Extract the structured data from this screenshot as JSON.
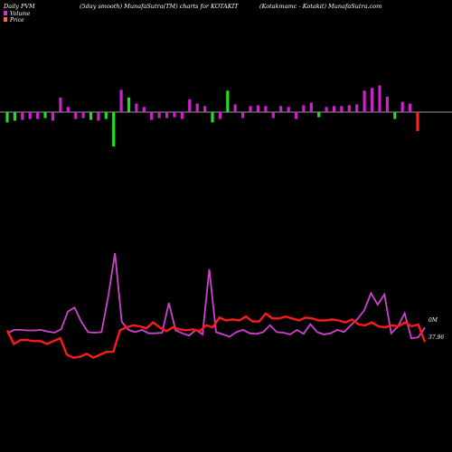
{
  "header": {
    "left": "Daily PVM",
    "middle": "(5day smooth) MunafaSutra(TM) charts for KOTAKIT",
    "right": "(Kotakmamc - Kotakit) MunafaSutra.com"
  },
  "legend": [
    {
      "label": "Volume",
      "color": "#cc33cc"
    },
    {
      "label": "Price",
      "color": "#ff6a3d"
    }
  ],
  "colors": {
    "background": "#000000",
    "bar_up": "#cc22cc",
    "bar_down": "#22dd22",
    "bar_red": "#ff2222",
    "price_line": "#ff1a1a",
    "volume_line": "#cc44cc",
    "baseline": "#cccccc"
  },
  "chart_data": {
    "type": "bar+line",
    "title": "(5day smooth) MunafaSutra(TM) charts for KOTAKIT",
    "pvm_bars": {
      "values": [
        -0.6,
        -0.5,
        -0.45,
        -0.4,
        -0.4,
        -0.35,
        -0.5,
        0.85,
        0.3,
        -0.4,
        -0.35,
        -0.45,
        -0.5,
        -0.4,
        -2.0,
        1.3,
        0.85,
        0.5,
        0.3,
        -0.45,
        -0.35,
        -0.35,
        -0.3,
        -0.4,
        0.75,
        0.5,
        0.35,
        -0.6,
        -0.4,
        1.25,
        0.45,
        -0.35,
        0.35,
        0.4,
        0.35,
        -0.35,
        0.35,
        0.3,
        -0.4,
        0.4,
        0.55,
        -0.3,
        0.3,
        0.35,
        0.35,
        0.4,
        0.45,
        1.25,
        1.4,
        1.55,
        0.9,
        -0.4,
        0.6,
        0.5,
        -1.1
      ],
      "colors": [
        "green",
        "green",
        "magenta",
        "magenta",
        "magenta",
        "green",
        "magenta",
        "magenta",
        "magenta",
        "magenta",
        "magenta",
        "green",
        "magenta",
        "green",
        "green",
        "magenta",
        "green",
        "magenta",
        "magenta",
        "magenta",
        "magenta",
        "magenta",
        "magenta",
        "magenta",
        "magenta",
        "magenta",
        "magenta",
        "green",
        "magenta",
        "green",
        "magenta",
        "magenta",
        "magenta",
        "magenta",
        "magenta",
        "magenta",
        "magenta",
        "magenta",
        "magenta",
        "magenta",
        "magenta",
        "green",
        "magenta",
        "magenta",
        "magenta",
        "magenta",
        "magenta",
        "magenta",
        "magenta",
        "magenta",
        "magenta",
        "green",
        "magenta",
        "magenta",
        "red"
      ]
    },
    "series": [
      {
        "name": "Volume",
        "values": [
          10,
          16,
          16,
          15,
          15,
          16,
          13,
          11,
          17,
          48,
          55,
          30,
          12,
          11,
          12,
          75,
          150,
          30,
          16,
          12,
          16,
          10,
          10,
          11,
          63,
          15,
          10,
          6,
          16,
          8,
          122,
          12,
          8,
          4,
          12,
          16,
          10,
          9,
          12,
          24,
          12,
          11,
          8,
          16,
          9,
          26,
          12,
          8,
          10,
          16,
          12,
          24,
          35,
          50,
          80,
          60,
          78,
          10,
          22,
          45,
          1,
          3,
          20
        ]
      },
      {
        "name": "Price",
        "values": [
          2,
          -12,
          -8,
          -8,
          -9,
          -9,
          -12,
          -9,
          -6,
          -23,
          -26,
          -25,
          -22,
          -26,
          -23,
          -20,
          -20,
          2,
          5,
          7,
          6,
          4,
          10,
          5,
          1,
          5,
          3,
          2,
          3,
          1,
          7,
          5,
          15,
          12,
          13,
          12,
          16,
          11,
          11,
          19,
          14,
          14,
          16,
          14,
          12,
          15,
          14,
          12,
          12,
          13,
          12,
          10,
          13,
          8,
          7,
          10,
          6,
          5,
          7,
          6,
          10,
          6,
          8,
          -10
        ]
      }
    ],
    "annotations": {
      "volume_last": "0M",
      "price_last": "37.96"
    }
  }
}
